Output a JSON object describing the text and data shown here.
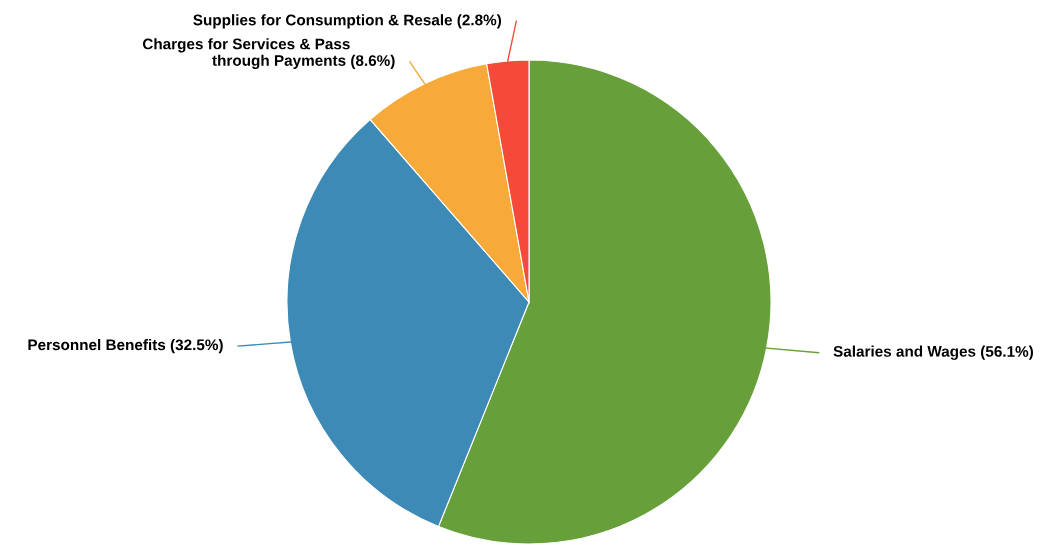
{
  "chart_data": {
    "type": "pie",
    "categories": [
      "Salaries and Wages",
      "Personnel Benefits",
      "Charges for Services & Pass through Payments",
      "Supplies for Consumption & Resale"
    ],
    "values": [
      56.1,
      32.5,
      8.6,
      2.8
    ],
    "colors": [
      "#67a03a",
      "#3c8ab5",
      "#f7aa3a",
      "#f54a3a"
    ],
    "value_labels": [
      "(56.1%)",
      "(32.5%)",
      "(8.6%)",
      "(2.8%)"
    ],
    "legend": false
  }
}
